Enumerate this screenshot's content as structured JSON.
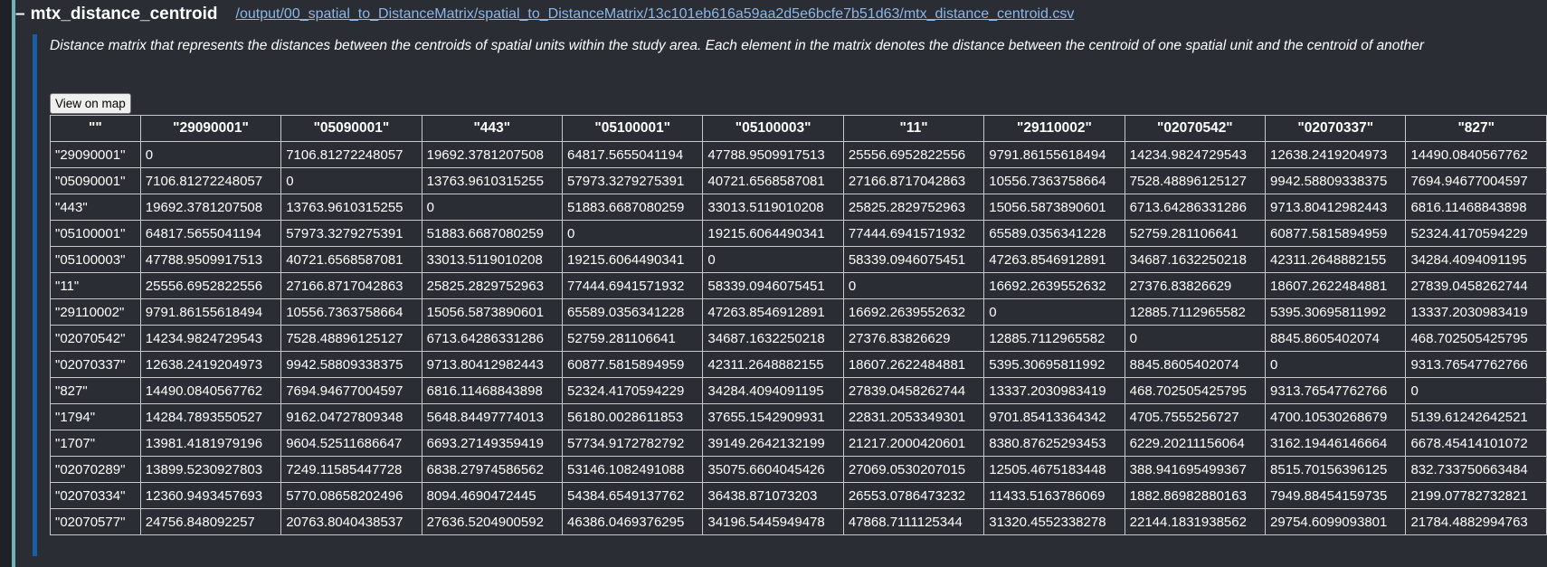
{
  "header": {
    "toggle_symbol": "–",
    "title": "mtx_distance_centroid",
    "path": "/output/00_spatial_to_DistanceMatrix/spatial_to_DistanceMatrix/13c101eb616a59aa2d5e6bcfe7b51d63/mtx_distance_centroid.csv"
  },
  "description": "Distance matrix that represents the distances between the centroids of spatial units within the study area. Each element in the matrix denotes the distance between the centroid of one spatial unit and the centroid of another",
  "map_button_label": "View on map",
  "colors": {
    "panel_bg": "#2a2d33",
    "outer_accent": "#6fb3b8",
    "description_accent": "#1a5ea8",
    "link": "#8ab8ea"
  },
  "table": {
    "headers": [
      "\"\"",
      "\"29090001\"",
      "\"05090001\"",
      "\"443\"",
      "\"05100001\"",
      "\"05100003\"",
      "\"11\"",
      "\"29110002\"",
      "\"02070542\"",
      "\"02070337\"",
      "\"827\""
    ],
    "rows": [
      [
        "\"29090001\"",
        "0",
        "7106.81272248057",
        "19692.3781207508",
        "64817.5655041194",
        "47788.9509917513",
        "25556.6952822556",
        "9791.86155618494",
        "14234.9824729543",
        "12638.2419204973",
        "14490.0840567762"
      ],
      [
        "\"05090001\"",
        "7106.81272248057",
        "0",
        "13763.9610315255",
        "57973.3279275391",
        "40721.6568587081",
        "27166.8717042863",
        "10556.7363758664",
        "7528.48896125127",
        "9942.58809338375",
        "7694.94677004597"
      ],
      [
        "\"443\"",
        "19692.3781207508",
        "13763.9610315255",
        "0",
        "51883.6687080259",
        "33013.5119010208",
        "25825.2829752963",
        "15056.5873890601",
        "6713.64286331286",
        "9713.80412982443",
        "6816.11468843898"
      ],
      [
        "\"05100001\"",
        "64817.5655041194",
        "57973.3279275391",
        "51883.6687080259",
        "0",
        "19215.6064490341",
        "77444.6941571932",
        "65589.0356341228",
        "52759.281106641",
        "60877.5815894959",
        "52324.4170594229"
      ],
      [
        "\"05100003\"",
        "47788.9509917513",
        "40721.6568587081",
        "33013.5119010208",
        "19215.6064490341",
        "0",
        "58339.0946075451",
        "47263.8546912891",
        "34687.1632250218",
        "42311.2648882155",
        "34284.4094091195"
      ],
      [
        "\"11\"",
        "25556.6952822556",
        "27166.8717042863",
        "25825.2829752963",
        "77444.6941571932",
        "58339.0946075451",
        "0",
        "16692.2639552632",
        "27376.83826629",
        "18607.2622484881",
        "27839.0458262744"
      ],
      [
        "\"29110002\"",
        "9791.86155618494",
        "10556.7363758664",
        "15056.5873890601",
        "65589.0356341228",
        "47263.8546912891",
        "16692.2639552632",
        "0",
        "12885.7112965582",
        "5395.30695811992",
        "13337.2030983419"
      ],
      [
        "\"02070542\"",
        "14234.9824729543",
        "7528.48896125127",
        "6713.64286331286",
        "52759.281106641",
        "34687.1632250218",
        "27376.83826629",
        "12885.7112965582",
        "0",
        "8845.8605402074",
        "468.702505425795"
      ],
      [
        "\"02070337\"",
        "12638.2419204973",
        "9942.58809338375",
        "9713.80412982443",
        "60877.5815894959",
        "42311.2648882155",
        "18607.2622484881",
        "5395.30695811992",
        "8845.8605402074",
        "0",
        "9313.76547762766"
      ],
      [
        "\"827\"",
        "14490.0840567762",
        "7694.94677004597",
        "6816.11468843898",
        "52324.4170594229",
        "34284.4094091195",
        "27839.0458262744",
        "13337.2030983419",
        "468.702505425795",
        "9313.76547762766",
        "0"
      ],
      [
        "\"1794\"",
        "14284.7893550527",
        "9162.04727809348",
        "5648.84497774013",
        "56180.0028611853",
        "37655.1542909931",
        "22831.2053349301",
        "9701.85413364342",
        "4705.7555256727",
        "4700.10530268679",
        "5139.61242642521"
      ],
      [
        "\"1707\"",
        "13981.4181979196",
        "9604.52511686647",
        "6693.27149359419",
        "57734.9172782792",
        "39149.2642132199",
        "21217.2000420601",
        "8380.87625293453",
        "6229.20211156064",
        "3162.19446146664",
        "6678.45414101072"
      ],
      [
        "\"02070289\"",
        "13899.5230927803",
        "7249.11585447728",
        "6838.27974586562",
        "53146.1082491088",
        "35075.6604045426",
        "27069.0530207015",
        "12505.4675183448",
        "388.941695499367",
        "8515.70156396125",
        "832.733750663484"
      ],
      [
        "\"02070334\"",
        "12360.9493457693",
        "5770.08658202496",
        "8094.4690472445",
        "54384.6549137762",
        "36438.871073203",
        "26553.0786473232",
        "11433.5163786069",
        "1882.86982880163",
        "7949.88454159735",
        "2199.07782732821"
      ],
      [
        "\"02070577\"",
        "24756.848092257",
        "20763.8040438537",
        "27636.5204900592",
        "46386.0469376295",
        "34196.5445949478",
        "47868.7111125344",
        "31320.4552338278",
        "22144.1831938562",
        "29754.6099093801",
        "21784.4882994763"
      ]
    ]
  }
}
